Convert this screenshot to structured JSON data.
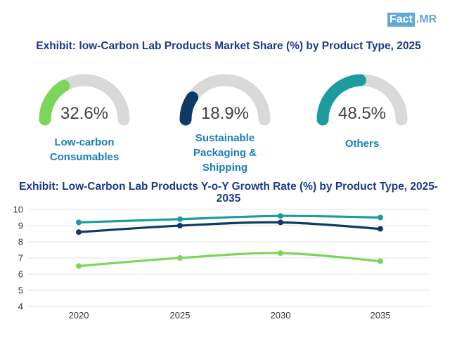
{
  "brand": {
    "left": "Fact",
    "right": ".MR"
  },
  "colors": {
    "track": "#d9d9d9",
    "teal": "#1c9c9c",
    "navy": "#0d3b66",
    "green": "#7cd65a",
    "title": "#1a3a8a",
    "label": "#1a7cba"
  },
  "chart_data": [
    {
      "type": "gauge",
      "title": "Exhibit: low-Carbon Lab Products Market Share (%) by Product Type, 2025",
      "segments": [
        {
          "label": "Low-carbon Consumables",
          "display": "32.6%",
          "value": 32.6,
          "color": "#7cd65a"
        },
        {
          "label": "Sustainable Packaging & Shipping",
          "display": "18.9%",
          "value": 18.9,
          "color": "#0d3b66"
        },
        {
          "label": "Others",
          "display": "48.5%",
          "value": 48.5,
          "color": "#1c9c9c"
        }
      ]
    },
    {
      "type": "line",
      "title": "Exhibit: Low-Carbon Lab Products Y-o-Y Growth Rate (%) by Product Type, 2025-2035",
      "x": [
        "2020",
        "2025",
        "2030",
        "2035"
      ],
      "ylim": [
        4,
        10
      ],
      "yticks": [
        4,
        5,
        6,
        7,
        8,
        9,
        10
      ],
      "series": [
        {
          "name": "Others",
          "color": "#1c9c9c",
          "values": [
            9.2,
            9.4,
            9.6,
            9.5
          ]
        },
        {
          "name": "Sustainable Packaging & Shipping",
          "color": "#0d3b66",
          "values": [
            8.6,
            9.0,
            9.2,
            8.8
          ]
        },
        {
          "name": "Low-carbon Consumables",
          "color": "#7cd65a",
          "values": [
            6.5,
            7.0,
            7.3,
            6.8
          ]
        }
      ],
      "grid": true
    }
  ]
}
